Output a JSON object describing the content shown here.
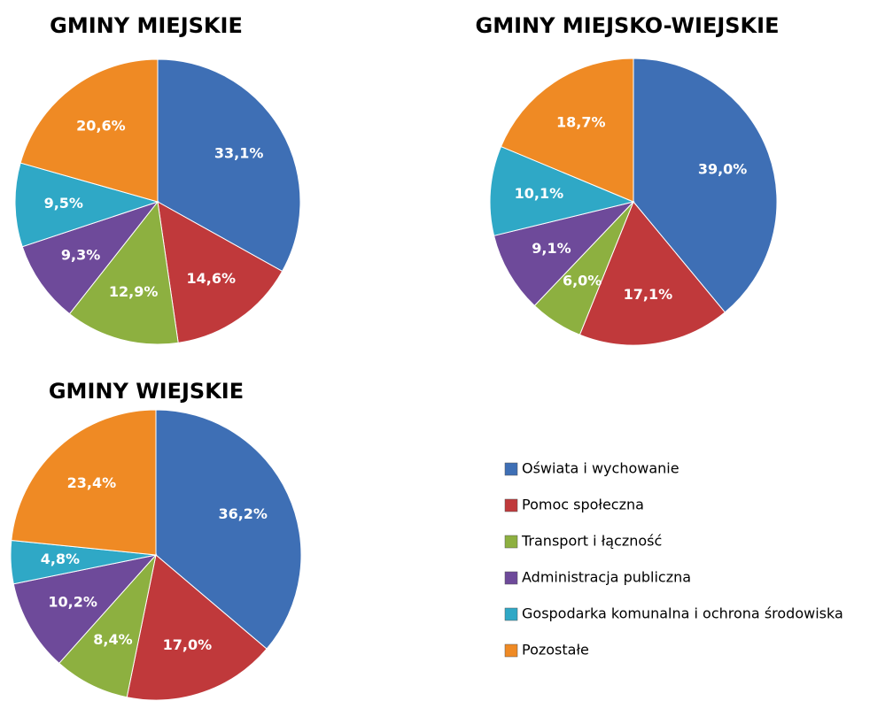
{
  "chart_data": [
    {
      "type": "pie",
      "title": "GMINY MIEJSKIE",
      "categories": [
        "Oświata i wychowanie",
        "Pomoc społeczna",
        "Transport i łączność",
        "Administracja publiczna",
        "Gospodarka komunalna  i ochrona środowiska",
        "Pozostałe"
      ],
      "values": [
        33.1,
        14.6,
        12.9,
        9.3,
        9.5,
        20.6
      ],
      "value_labels": [
        "33,1%",
        "14,6%",
        "12,9%",
        "9,3%",
        "9,5%",
        "20,6%"
      ],
      "colors": [
        "#3e6fb5",
        "#c0393b",
        "#8db040",
        "#6e4a9a",
        "#2fa8c6",
        "#ef8a24"
      ]
    },
    {
      "type": "pie",
      "title": "GMINY MIEJSKO-WIEJSKIE",
      "categories": [
        "Oświata i wychowanie",
        "Pomoc społeczna",
        "Transport i łączność",
        "Administracja publiczna",
        "Gospodarka komunalna  i ochrona środowiska",
        "Pozostałe"
      ],
      "values": [
        39.0,
        17.1,
        6.0,
        9.1,
        10.1,
        18.7
      ],
      "value_labels": [
        "39,0%",
        "17,1%",
        "6,0%",
        "9,1%",
        "10,1%",
        "18,7%"
      ],
      "colors": [
        "#3e6fb5",
        "#c0393b",
        "#8db040",
        "#6e4a9a",
        "#2fa8c6",
        "#ef8a24"
      ]
    },
    {
      "type": "pie",
      "title": "GMINY WIEJSKIE",
      "categories": [
        "Oświata i wychowanie",
        "Pomoc społeczna",
        "Transport i łączność",
        "Administracja publiczna",
        "Gospodarka komunalna  i ochrona środowiska",
        "Pozostałe"
      ],
      "values": [
        36.2,
        17.0,
        8.4,
        10.2,
        4.8,
        23.4
      ],
      "value_labels": [
        "36,2%",
        "17,0%",
        "8,4%",
        "10,2%",
        "4,8%",
        "23,4%"
      ],
      "colors": [
        "#3e6fb5",
        "#c0393b",
        "#8db040",
        "#6e4a9a",
        "#2fa8c6",
        "#ef8a24"
      ],
      "legend": "bottom-right"
    }
  ]
}
